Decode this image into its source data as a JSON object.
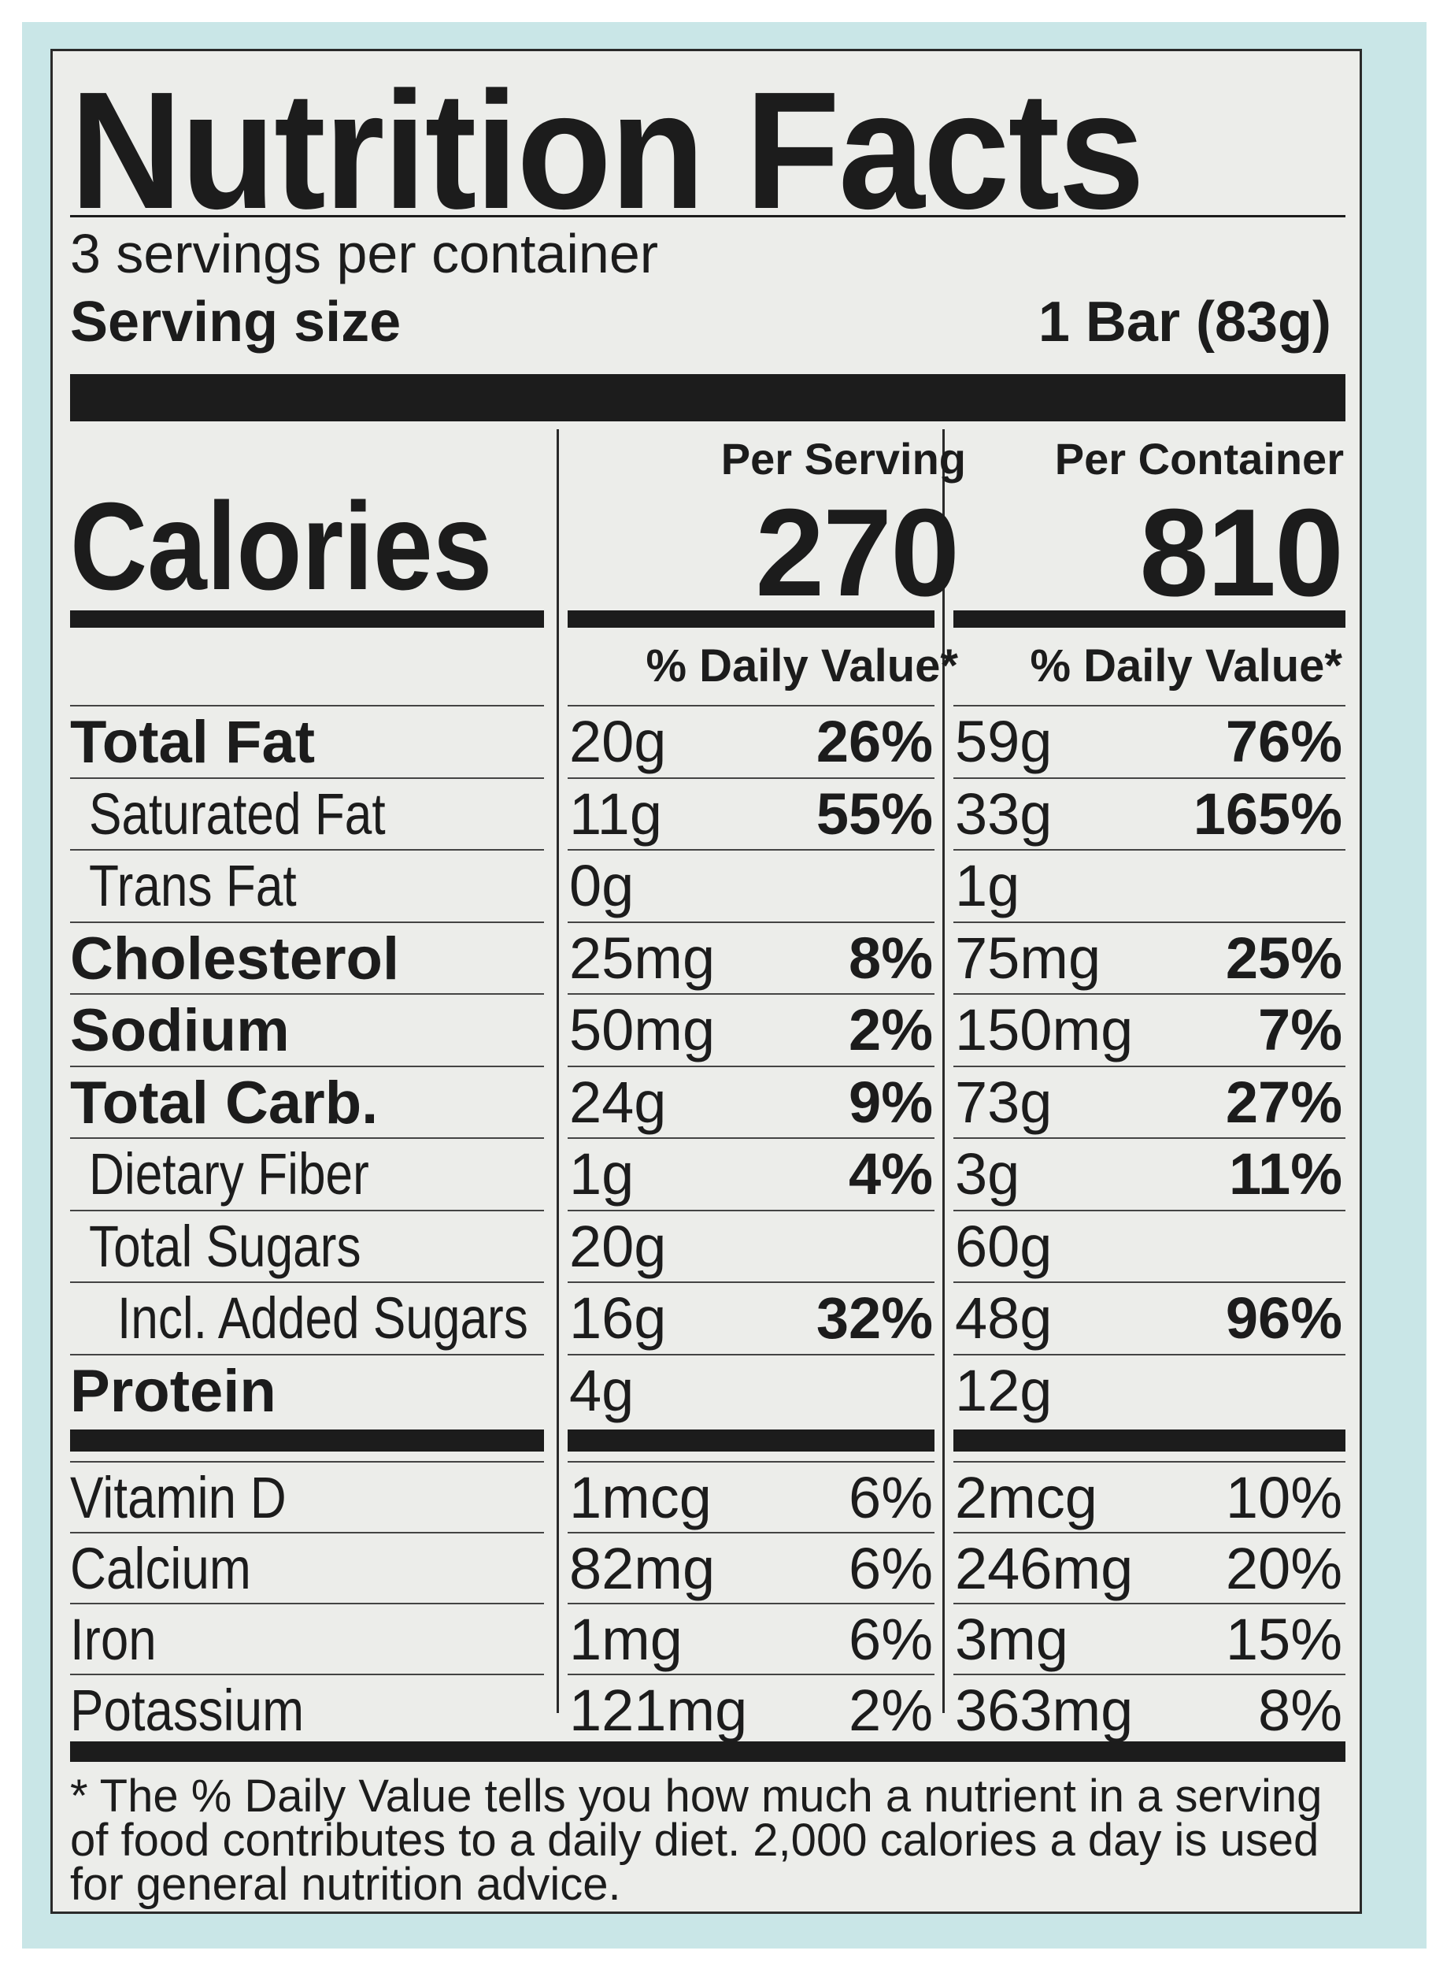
{
  "header": {
    "title": "Nutrition Facts",
    "servings_per_container": "3 servings per container",
    "serving_size_label": "Serving size",
    "serving_size_value": "1 Bar (83g)"
  },
  "calories": {
    "label": "Calories",
    "per_serving_head": "Per Serving",
    "per_serving_value": "270",
    "per_container_head": "Per Container",
    "per_container_value": "810",
    "dv_head": "% Daily Value*"
  },
  "nutrients": [
    {
      "label": "Total Fat",
      "style": "main",
      "serv_amt": "20g",
      "serv_pct": "26%",
      "cont_amt": "59g",
      "cont_pct": "76%"
    },
    {
      "label": "Saturated Fat",
      "style": "sub",
      "serv_amt": "11g",
      "serv_pct": "55%",
      "cont_amt": "33g",
      "cont_pct": "165%"
    },
    {
      "label": "Trans Fat",
      "style": "sub",
      "serv_amt": "0g",
      "serv_pct": "",
      "cont_amt": "1g",
      "cont_pct": ""
    },
    {
      "label": "Cholesterol",
      "style": "main",
      "serv_amt": "25mg",
      "serv_pct": "8%",
      "cont_amt": "75mg",
      "cont_pct": "25%"
    },
    {
      "label": "Sodium",
      "style": "main",
      "serv_amt": "50mg",
      "serv_pct": "2%",
      "cont_amt": "150mg",
      "cont_pct": "7%"
    },
    {
      "label": "Total Carb.",
      "style": "main",
      "serv_amt": "24g",
      "serv_pct": "9%",
      "cont_amt": "73g",
      "cont_pct": "27%"
    },
    {
      "label": "Dietary Fiber",
      "style": "sub",
      "serv_amt": "1g",
      "serv_pct": "4%",
      "cont_amt": "3g",
      "cont_pct": "11%"
    },
    {
      "label": "Total Sugars",
      "style": "sub",
      "serv_amt": "20g",
      "serv_pct": "",
      "cont_amt": "60g",
      "cont_pct": ""
    },
    {
      "label": "Incl. Added Sugars",
      "style": "subsub",
      "serv_amt": "16g",
      "serv_pct": "32%",
      "cont_amt": "48g",
      "cont_pct": "96%"
    },
    {
      "label": "Protein",
      "style": "main",
      "serv_amt": "4g",
      "serv_pct": "",
      "cont_amt": "12g",
      "cont_pct": ""
    }
  ],
  "vitamins": [
    {
      "label": "Vitamin D",
      "serv_amt": "1mcg",
      "serv_pct": "6%",
      "cont_amt": "2mcg",
      "cont_pct": "10%"
    },
    {
      "label": "Calcium",
      "serv_amt": "82mg",
      "serv_pct": "6%",
      "cont_amt": "246mg",
      "cont_pct": "20%"
    },
    {
      "label": "Iron",
      "serv_amt": "1mg",
      "serv_pct": "6%",
      "cont_amt": "3mg",
      "cont_pct": "15%"
    },
    {
      "label": "Potassium",
      "serv_amt": "121mg",
      "serv_pct": "2%",
      "cont_amt": "363mg",
      "cont_pct": "8%"
    }
  ],
  "footnote": "* The % Daily Value tells you how much a nutrient in a serving of food contributes to a daily diet. 2,000 calories a day is used for general nutrition advice."
}
